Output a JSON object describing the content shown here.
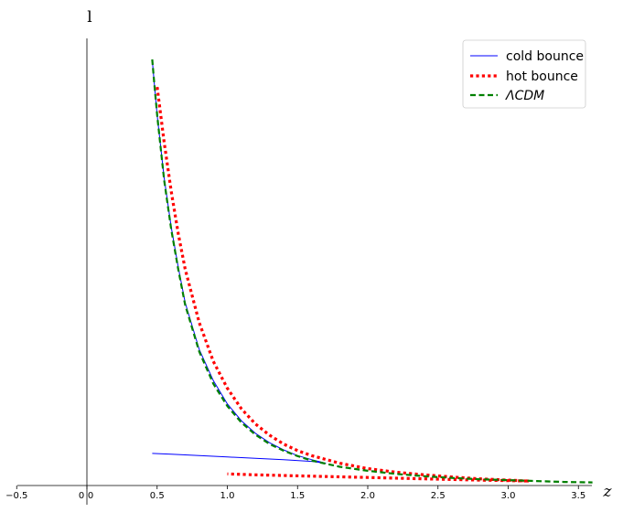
{
  "chart_data": {
    "type": "line",
    "title": "",
    "xlabel": "z",
    "ylabel": "l",
    "xlim": [
      -0.5,
      3.65
    ],
    "ylim": [
      0,
      1
    ],
    "x_ticks": [
      "−0.5",
      "0",
      "0.5",
      "1.0",
      "1.5",
      "2.0",
      "2.5",
      "3.0",
      "3.5"
    ],
    "extra_tick_label": "0",
    "grid": false,
    "legend_position": "top-right",
    "series": [
      {
        "name": "cold bounce",
        "style": "solid",
        "color": "#0000ff",
        "points": [
          [
            0.465,
            0.955
          ],
          [
            0.48,
            0.9
          ],
          [
            0.5,
            0.83
          ],
          [
            0.55,
            0.69
          ],
          [
            0.6,
            0.58
          ],
          [
            0.65,
            0.49
          ],
          [
            0.7,
            0.41
          ],
          [
            0.8,
            0.305
          ],
          [
            0.9,
            0.235
          ],
          [
            1.0,
            0.183
          ],
          [
            1.1,
            0.145
          ],
          [
            1.2,
            0.117
          ],
          [
            1.3,
            0.096
          ],
          [
            1.4,
            0.08
          ],
          [
            1.5,
            0.067
          ],
          [
            1.6,
            0.058
          ],
          [
            1.7,
            0.05
          ],
          [
            1.6,
            0.054
          ],
          [
            1.4,
            0.058
          ],
          [
            1.2,
            0.061
          ],
          [
            1.0,
            0.064
          ],
          [
            0.8,
            0.067
          ],
          [
            0.6,
            0.07
          ],
          [
            0.465,
            0.072
          ]
        ]
      },
      {
        "name": "hot bounce",
        "style": "dotted",
        "color": "#ff0000",
        "points": [
          [
            0.5,
            0.893
          ],
          [
            0.55,
            0.77
          ],
          [
            0.6,
            0.66
          ],
          [
            0.65,
            0.565
          ],
          [
            0.7,
            0.485
          ],
          [
            0.8,
            0.365
          ],
          [
            0.9,
            0.278
          ],
          [
            1.0,
            0.218
          ],
          [
            1.1,
            0.172
          ],
          [
            1.2,
            0.138
          ],
          [
            1.3,
            0.113
          ],
          [
            1.4,
            0.093
          ],
          [
            1.5,
            0.078
          ],
          [
            1.6,
            0.067
          ],
          [
            1.8,
            0.05
          ],
          [
            2.0,
            0.038
          ],
          [
            2.2,
            0.03
          ],
          [
            2.4,
            0.024
          ],
          [
            2.6,
            0.019
          ],
          [
            2.8,
            0.015
          ],
          [
            3.0,
            0.012
          ],
          [
            3.15,
            0.01
          ],
          [
            2.8,
            0.012
          ],
          [
            2.4,
            0.015
          ],
          [
            2.0,
            0.018
          ],
          [
            1.6,
            0.021
          ],
          [
            1.2,
            0.024
          ],
          [
            1.0,
            0.026
          ]
        ]
      },
      {
        "name": "ΛCDM",
        "style": "dashed",
        "color": "#008000",
        "points": [
          [
            0.465,
            0.955
          ],
          [
            0.48,
            0.9
          ],
          [
            0.5,
            0.83
          ],
          [
            0.55,
            0.685
          ],
          [
            0.6,
            0.575
          ],
          [
            0.65,
            0.485
          ],
          [
            0.7,
            0.405
          ],
          [
            0.8,
            0.3
          ],
          [
            0.9,
            0.228
          ],
          [
            1.0,
            0.178
          ],
          [
            1.1,
            0.141
          ],
          [
            1.2,
            0.114
          ],
          [
            1.3,
            0.093
          ],
          [
            1.4,
            0.078
          ],
          [
            1.5,
            0.066
          ],
          [
            1.6,
            0.056
          ],
          [
            1.8,
            0.042
          ],
          [
            2.0,
            0.033
          ],
          [
            2.2,
            0.026
          ],
          [
            2.4,
            0.021
          ],
          [
            2.6,
            0.017
          ],
          [
            2.8,
            0.014
          ],
          [
            3.0,
            0.012
          ],
          [
            3.2,
            0.01
          ],
          [
            3.4,
            0.008
          ],
          [
            3.6,
            0.007
          ]
        ]
      }
    ]
  }
}
